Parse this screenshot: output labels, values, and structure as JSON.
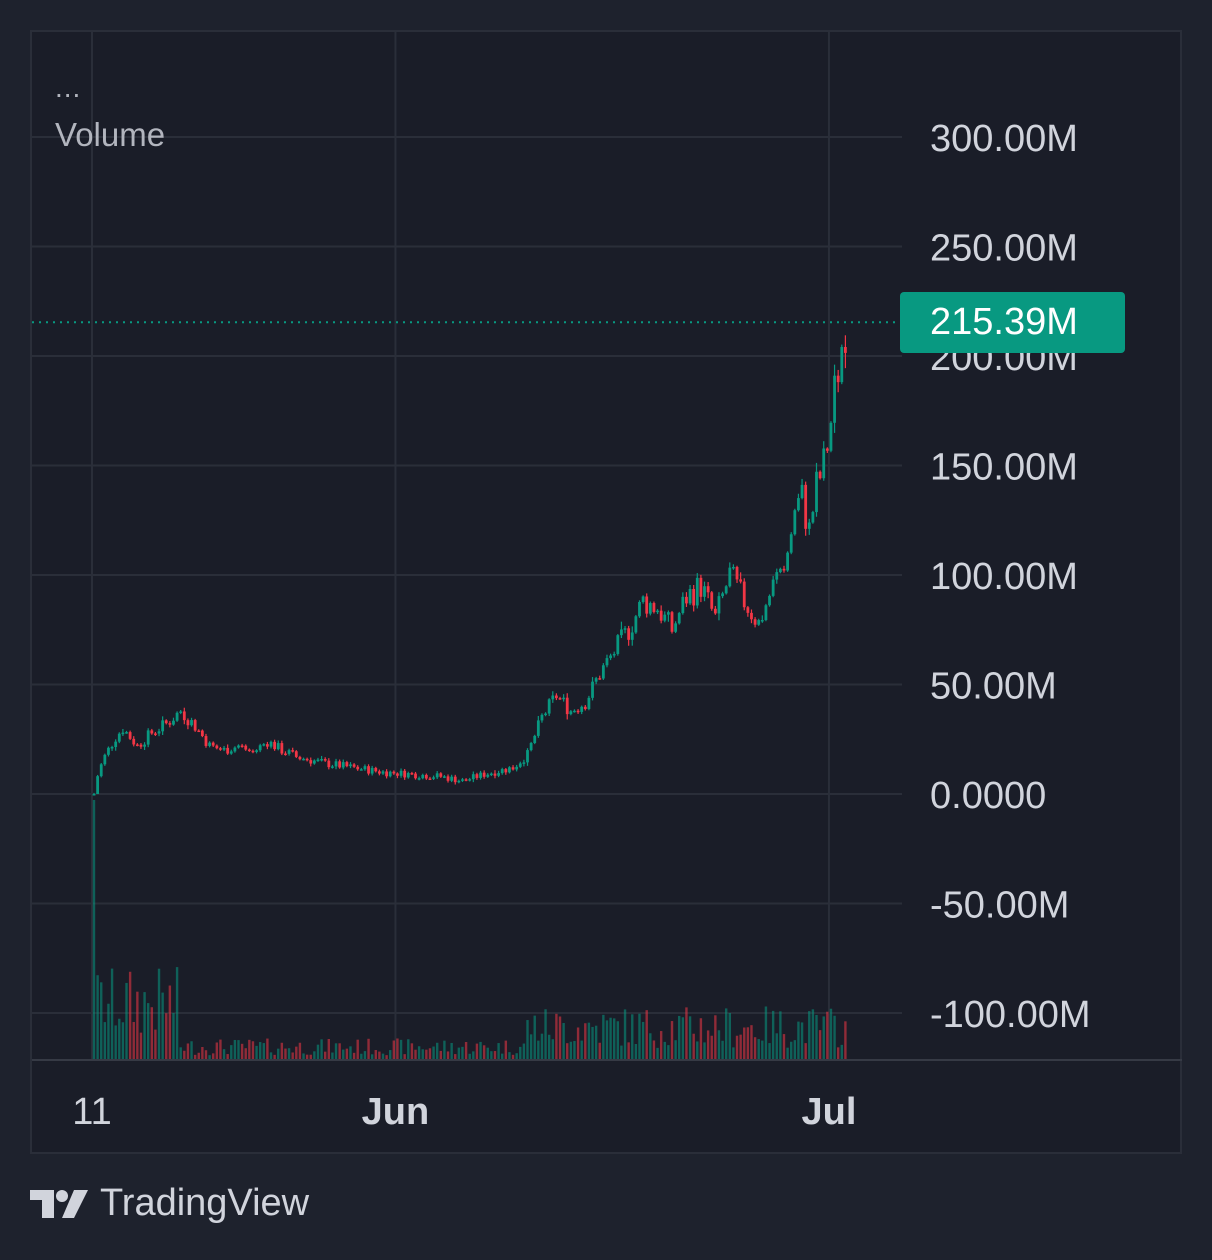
{
  "header": {
    "menu_dots": "...",
    "series_label": "Volume"
  },
  "last_value_label": "215.39M",
  "footer": {
    "brand": "TradingView",
    "logo_icon": "tradingview-logo-icon"
  },
  "colors": {
    "background": "#1e222d",
    "plot": "#1a1d28",
    "grid": "#2a2e39",
    "up": "#089981",
    "down": "#f23645",
    "text": "#d1d4dc"
  },
  "chart_data": {
    "type": "candlestick",
    "y_axis": {
      "ticks": [
        300000000,
        250000000,
        200000000,
        150000000,
        100000000,
        50000000,
        0,
        -50000000,
        -100000000
      ],
      "tick_labels": [
        "300.00M",
        "250.00M",
        "200.00M",
        "150.00M",
        "100.00M",
        "50.00M",
        "0.0000",
        "-50.00M",
        "-100.00M"
      ],
      "range": [
        -121000000,
        348000000
      ]
    },
    "x_axis": {
      "tick_labels": [
        "11",
        "Jun",
        "Jul"
      ],
      "tick_days": [
        0,
        21,
        51
      ]
    },
    "last_value": 215390000,
    "grid": true,
    "trend_points_day_value_millions": [
      [
        0,
        0
      ],
      [
        0.3,
        10
      ],
      [
        0.8,
        18
      ],
      [
        1.5,
        26
      ],
      [
        2.0,
        30
      ],
      [
        3.0,
        22
      ],
      [
        4.0,
        28
      ],
      [
        5.0,
        32
      ],
      [
        6.0,
        38
      ],
      [
        7.0,
        31
      ],
      [
        8.0,
        22
      ],
      [
        9.0,
        20
      ],
      [
        10.0,
        22
      ],
      [
        11.0,
        19
      ],
      [
        12.0,
        24
      ],
      [
        13.0,
        20
      ],
      [
        14.0,
        17
      ],
      [
        16.0,
        14
      ],
      [
        18.0,
        12
      ],
      [
        20.0,
        10
      ],
      [
        22.0,
        9
      ],
      [
        24.0,
        8
      ],
      [
        25.5,
        6
      ],
      [
        27.0,
        9
      ],
      [
        29.0,
        12
      ],
      [
        30.0,
        18
      ],
      [
        31.0,
        35
      ],
      [
        32.0,
        45
      ],
      [
        33.0,
        38
      ],
      [
        34.0,
        42
      ],
      [
        35.0,
        55
      ],
      [
        36.0,
        65
      ],
      [
        37.0,
        75
      ],
      [
        38.0,
        88
      ],
      [
        39.0,
        85
      ],
      [
        40.0,
        75
      ],
      [
        41.0,
        90
      ],
      [
        42.0,
        95
      ],
      [
        43.0,
        80
      ],
      [
        44.0,
        100
      ],
      [
        45.0,
        88
      ],
      [
        46.0,
        78
      ],
      [
        47.0,
        95
      ],
      [
        48.0,
        110
      ],
      [
        48.5,
        130
      ],
      [
        49.0,
        135
      ],
      [
        49.5,
        120
      ],
      [
        50.0,
        140
      ],
      [
        50.5,
        150
      ],
      [
        51.0,
        170
      ],
      [
        51.5,
        195
      ],
      [
        52.0,
        215.39
      ]
    ],
    "volume_note": "volume histogram bars at bottom of pane"
  }
}
